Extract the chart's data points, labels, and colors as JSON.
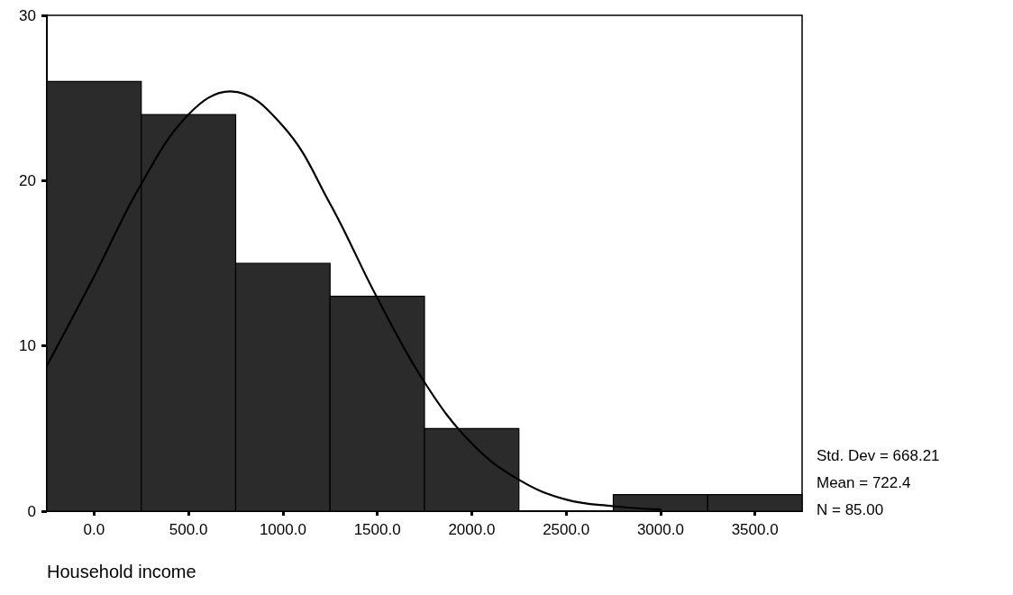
{
  "chart_data": {
    "type": "histogram",
    "xlabel": "Household income",
    "bins": [
      -250,
      250,
      750,
      1250,
      1750,
      2250,
      2750,
      3250,
      3750
    ],
    "values": [
      26,
      24,
      15,
      13,
      5,
      0,
      1,
      1
    ],
    "color": "#2b2b2b",
    "series": [
      {
        "type": "line",
        "color": "#000000",
        "x": [
          -250,
          0,
          250,
          500,
          722,
          1000,
          1250,
          1500,
          1750,
          2000,
          2250,
          2500,
          2750,
          3000
        ],
        "values": [
          8.8,
          14.2,
          19.8,
          24.0,
          25.4,
          23.3,
          18.6,
          12.9,
          7.8,
          4.1,
          1.9,
          0.7,
          0.3,
          0.1
        ]
      }
    ],
    "marker": "none",
    "line_style": "solid",
    "xlim": [
      -250,
      3750
    ],
    "xticks": [
      {
        "value": 0,
        "label": "0.0"
      },
      {
        "value": 500,
        "label": "500.0"
      },
      {
        "value": 1000,
        "label": "1000.0"
      },
      {
        "value": 1500,
        "label": "1500.0"
      },
      {
        "value": 2000,
        "label": "2000.0"
      },
      {
        "value": 2500,
        "label": "2500.0"
      },
      {
        "value": 3000,
        "label": "3000.0"
      },
      {
        "value": 3500,
        "label": "3500.0"
      }
    ],
    "ylim": [
      0,
      30
    ],
    "yticks": [
      0,
      10,
      20,
      30
    ],
    "grid": false,
    "annotations": [
      "Std. Dev = 668.21",
      "Mean = 722.4",
      "N = 85.00"
    ]
  }
}
